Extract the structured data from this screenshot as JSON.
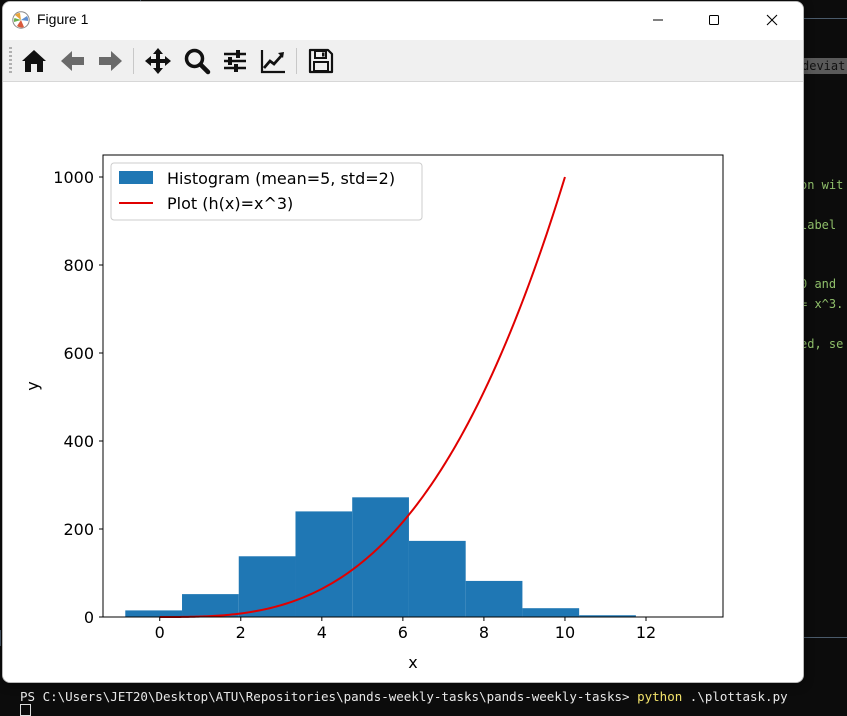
{
  "window": {
    "title": "Figure 1"
  },
  "toolbar": {
    "buttons": [
      {
        "name": "home",
        "icon": "home-icon"
      },
      {
        "name": "back",
        "icon": "arrow-left-icon"
      },
      {
        "name": "forward",
        "icon": "arrow-right-icon"
      },
      {
        "name": "pan",
        "icon": "move-icon"
      },
      {
        "name": "zoom",
        "icon": "magnifier-icon"
      },
      {
        "name": "configure-subplots",
        "icon": "sliders-icon"
      },
      {
        "name": "edit-axis",
        "icon": "line-chart-icon"
      },
      {
        "name": "save",
        "icon": "floppy-disk-icon"
      }
    ]
  },
  "terminal": {
    "highlight_text": "deviat",
    "fragments": [
      {
        "text": "on wit"
      },
      {
        "text": " label"
      },
      {
        "text": " 0 and"
      },
      {
        "text": "= x^3."
      },
      {
        "text": "ed, se"
      }
    ],
    "prompt": "PS C:\\Users\\JET20\\Desktop\\ATU\\Repositories\\pands-weekly-tasks\\pands-weekly-tasks> ",
    "command": "python",
    "argument": " .\\plottask.py"
  },
  "chart_data": {
    "type": "bar",
    "xlabel": "x",
    "ylabel": "y",
    "xlim": [
      -1.4,
      13.9
    ],
    "ylim": [
      0,
      1050
    ],
    "xticks": [
      0,
      2,
      4,
      6,
      8,
      10,
      12
    ],
    "yticks": [
      0,
      200,
      400,
      600,
      800,
      1000
    ],
    "legend_position": "upper-left",
    "histogram": {
      "name": "Histogram (mean=5, std=2)",
      "color": "#1f77b4",
      "bins": [
        {
          "x0": -0.85,
          "x1": 0.55,
          "count": 15
        },
        {
          "x0": 0.55,
          "x1": 1.95,
          "count": 52
        },
        {
          "x0": 1.95,
          "x1": 3.35,
          "count": 138
        },
        {
          "x0": 3.35,
          "x1": 4.75,
          "count": 240
        },
        {
          "x0": 4.75,
          "x1": 6.15,
          "count": 272
        },
        {
          "x0": 6.15,
          "x1": 7.55,
          "count": 173
        },
        {
          "x0": 7.55,
          "x1": 8.95,
          "count": 82
        },
        {
          "x0": 8.95,
          "x1": 10.35,
          "count": 20
        },
        {
          "x0": 10.35,
          "x1": 11.75,
          "count": 4
        },
        {
          "x0": 11.75,
          "x1": 13.15,
          "count": 1
        }
      ]
    },
    "line": {
      "name": "Plot (h(x)=x^3)",
      "color": "#e00000",
      "function": "x^3",
      "x_range": [
        0,
        10
      ]
    }
  }
}
